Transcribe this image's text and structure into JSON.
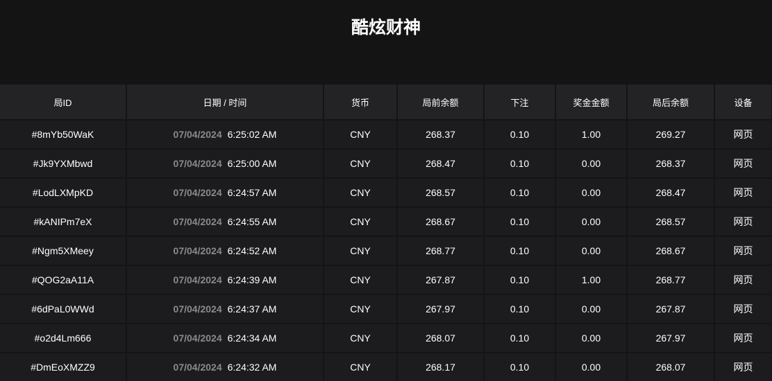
{
  "header": {
    "subtitle": "酷炫财神"
  },
  "table": {
    "headers": [
      "局ID",
      "日期 / 时间",
      "货币",
      "局前余额",
      "下注",
      "奖金金额",
      "局后余额",
      "设备"
    ],
    "rows": [
      [
        "#8mYb50WaK",
        "07/04/2024",
        "6:25:02 AM",
        "CNY",
        "268.37",
        "0.10",
        "1.00",
        "269.27",
        "网页"
      ],
      [
        "#Jk9YXMbwd",
        "07/04/2024",
        "6:25:00 AM",
        "CNY",
        "268.47",
        "0.10",
        "0.00",
        "268.37",
        "网页"
      ],
      [
        "#LodLXMpKD",
        "07/04/2024",
        "6:24:57 AM",
        "CNY",
        "268.57",
        "0.10",
        "0.00",
        "268.47",
        "网页"
      ],
      [
        "#kANIPm7eX",
        "07/04/2024",
        "6:24:55 AM",
        "CNY",
        "268.67",
        "0.10",
        "0.00",
        "268.57",
        "网页"
      ],
      [
        "#Ngm5XMeey",
        "07/04/2024",
        "6:24:52 AM",
        "CNY",
        "268.77",
        "0.10",
        "0.00",
        "268.67",
        "网页"
      ],
      [
        "#QOG2aA11A",
        "07/04/2024",
        "6:24:39 AM",
        "CNY",
        "267.87",
        "0.10",
        "1.00",
        "268.77",
        "网页"
      ],
      [
        "#6dPaL0WWd",
        "07/04/2024",
        "6:24:37 AM",
        "CNY",
        "267.97",
        "0.10",
        "0.00",
        "267.87",
        "网页"
      ],
      [
        "#o2d4Lm666",
        "07/04/2024",
        "6:24:34 AM",
        "CNY",
        "268.07",
        "0.10",
        "0.00",
        "267.97",
        "网页"
      ],
      [
        "#DmEoXMZZ9",
        "07/04/2024",
        "6:24:32 AM",
        "CNY",
        "268.17",
        "0.10",
        "0.00",
        "268.07",
        "网页"
      ]
    ]
  }
}
